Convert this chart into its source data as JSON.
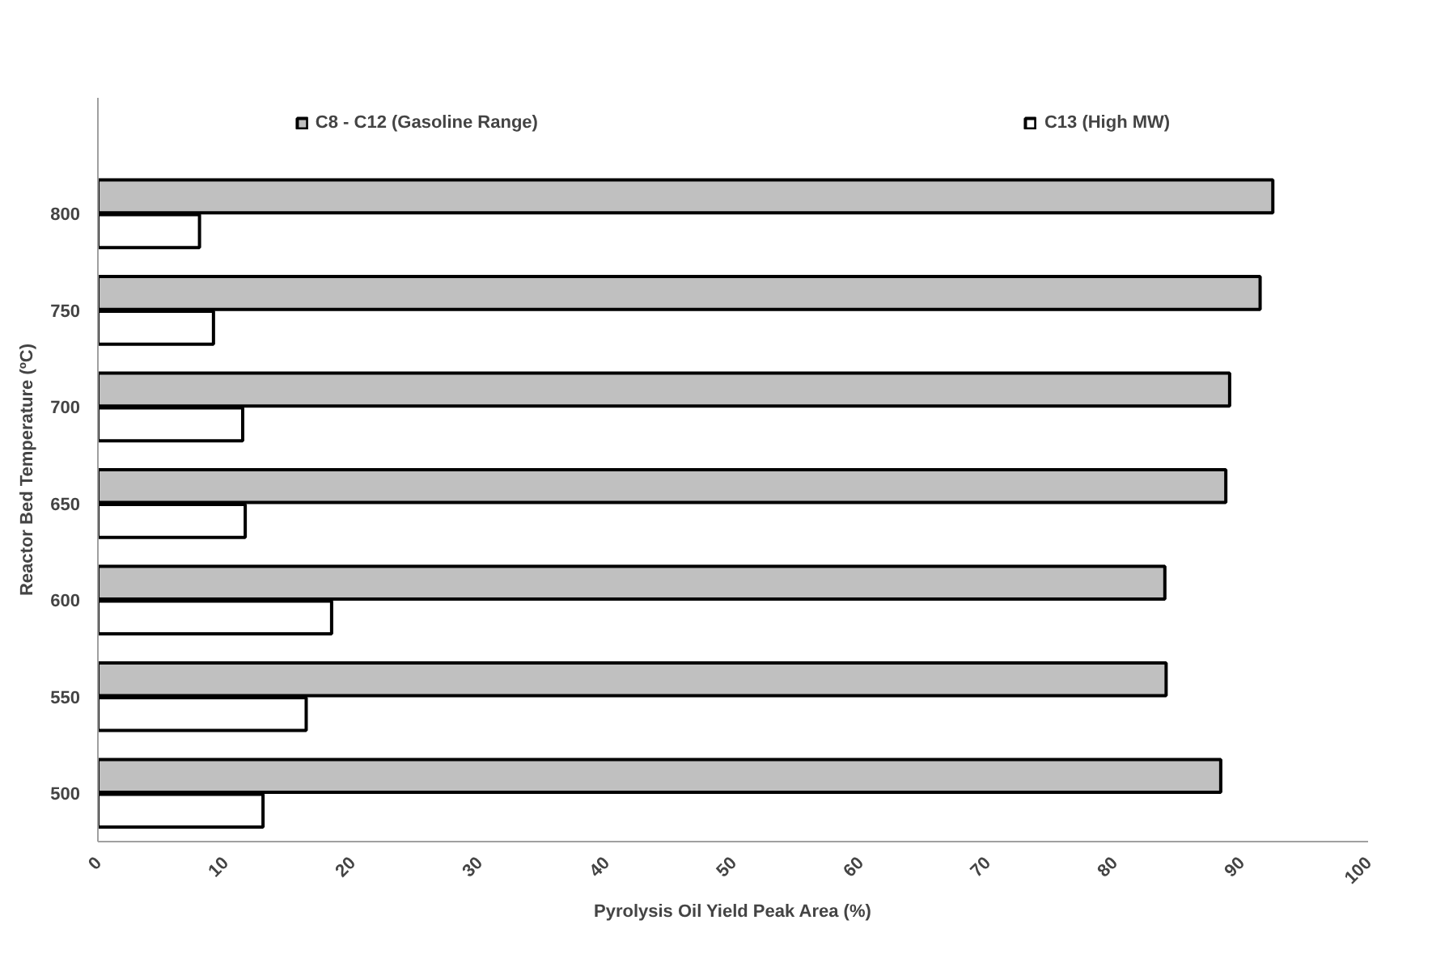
{
  "chart_data": {
    "type": "bar",
    "orientation": "horizontal",
    "xlabel": "Pyrolysis Oil Yield Peak Area (%)",
    "ylabel": "Reactor Bed Temperature (ºC)",
    "categories": [
      "800",
      "750",
      "700",
      "650",
      "600",
      "550",
      "500"
    ],
    "series": [
      {
        "name": "C8 - C12 (Gasoline Range)",
        "color": "#c0c0c0",
        "values": [
          92.5,
          91.5,
          89.1,
          88.8,
          84.0,
          84.1,
          88.4
        ]
      },
      {
        "name": "C13 (High MW)",
        "color": "#ffffff",
        "values": [
          8.0,
          9.1,
          11.4,
          11.6,
          18.4,
          16.4,
          13.0
        ]
      }
    ],
    "xlim": [
      0,
      100
    ],
    "xticks": [
      0,
      10,
      20,
      30,
      40,
      50,
      60,
      70,
      80,
      90,
      100
    ],
    "legend": "top"
  }
}
